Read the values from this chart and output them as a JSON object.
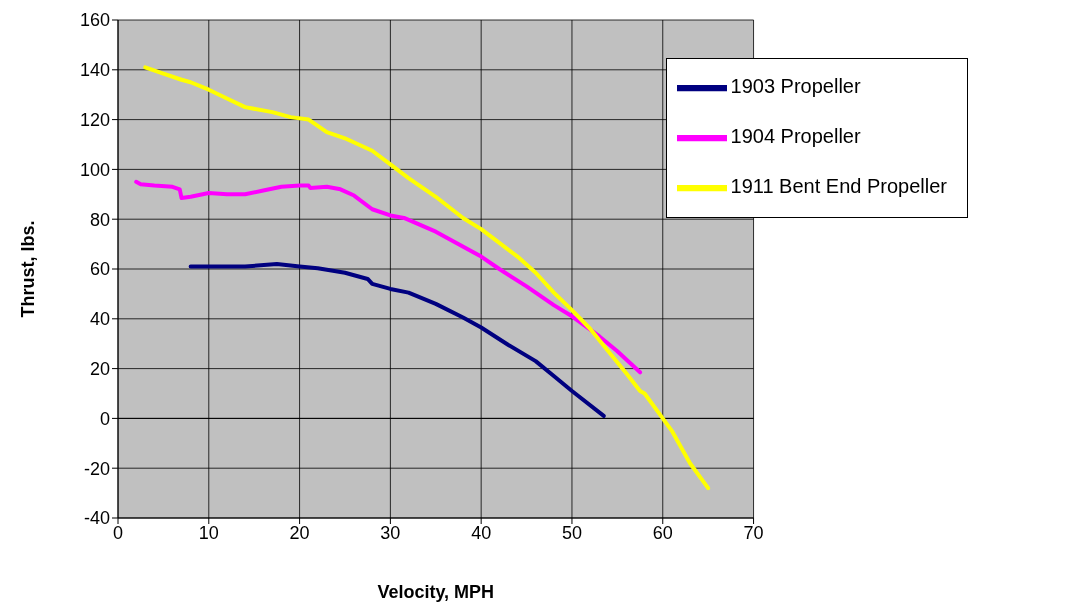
{
  "chart_data": {
    "type": "line",
    "xlabel": "Velocity, MPH",
    "ylabel": "Thrust, lbs.",
    "xlim": [
      0,
      70
    ],
    "xticks": [
      0,
      10,
      20,
      30,
      40,
      50,
      60,
      70
    ],
    "ylim": [
      -40,
      160
    ],
    "yticks": [
      -40,
      -20,
      0,
      20,
      40,
      60,
      80,
      100,
      120,
      140,
      160
    ],
    "grid": true,
    "legend": "top right",
    "marker": "none",
    "line_style": "solid",
    "series": [
      {
        "name": "1903 Propeller",
        "color": "#000080",
        "x": [
          8,
          14,
          17.5,
          20,
          22,
          25,
          27.5,
          28,
          30,
          32,
          35,
          38,
          40,
          43,
          46,
          48,
          50,
          53.5
        ],
        "values": [
          61,
          61,
          62,
          61,
          60.3,
          58.5,
          56,
          54,
          52,
          50.5,
          46,
          40.5,
          36.5,
          29.5,
          23,
          17,
          11,
          1
        ]
      },
      {
        "name": "1904 Propeller",
        "color": "#ff00ff",
        "x": [
          2,
          2.5,
          4,
          6,
          6.8,
          7,
          8,
          10,
          12,
          14,
          16,
          18,
          20,
          21,
          21.2,
          23,
          24.5,
          26,
          28,
          30,
          31.5,
          35,
          40,
          42,
          45,
          48,
          50,
          53,
          55,
          57.5
        ],
        "values": [
          95,
          94,
          93.5,
          93,
          92,
          88.5,
          89,
          90.5,
          90,
          90,
          91.5,
          93,
          93.5,
          93.5,
          92.5,
          93,
          92,
          89.5,
          84,
          81.5,
          80.5,
          75,
          65,
          60,
          53,
          45.5,
          41,
          33,
          27,
          18.5
        ]
      },
      {
        "name": "1911 Bent End Propeller",
        "color": "#ffff00",
        "x": [
          3,
          5,
          7,
          8,
          10,
          12,
          14,
          17,
          19,
          21,
          23,
          25,
          28,
          30,
          32,
          35,
          38,
          40,
          42,
          44,
          46,
          48,
          50,
          52,
          54,
          56,
          57.5,
          58,
          60,
          61,
          63,
          65
        ],
        "values": [
          141,
          138.5,
          136,
          135,
          132,
          128.5,
          125,
          123,
          121,
          120,
          115,
          112.5,
          107.5,
          102,
          96.5,
          89,
          80.5,
          76,
          70.5,
          65,
          58.5,
          50.5,
          43.5,
          36,
          27,
          18,
          11,
          10,
          0,
          -5,
          -18,
          -28
        ]
      }
    ]
  }
}
